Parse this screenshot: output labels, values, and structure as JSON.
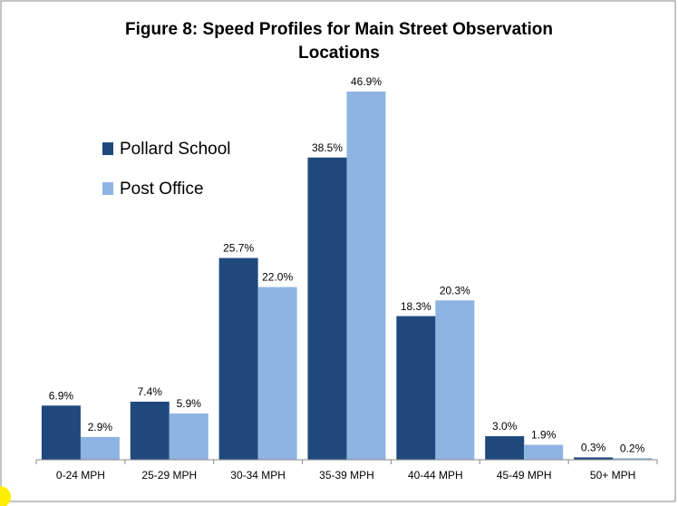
{
  "chart_data": {
    "type": "bar",
    "title": "Figure 8:  Speed Profiles for Main Street Observation Locations",
    "categories": [
      "0-24 MPH",
      "25-29 MPH",
      "30-34 MPH",
      "35-39 MPH",
      "40-44 MPH",
      "45-49 MPH",
      "50+ MPH"
    ],
    "series": [
      {
        "name": "Pollard School",
        "color": "#1f497d",
        "values": [
          6.9,
          7.4,
          25.7,
          38.5,
          18.3,
          3.0,
          0.3
        ],
        "value_labels": [
          "6.9%",
          "7.4%",
          "25.7%",
          "38.5%",
          "18.3%",
          "3.0%",
          "0.3%"
        ]
      },
      {
        "name": "Post Office",
        "color": "#8eb4e3",
        "values": [
          2.9,
          5.9,
          22.0,
          46.9,
          20.3,
          1.9,
          0.2
        ],
        "value_labels": [
          "2.9%",
          "5.9%",
          "22.0%",
          "46.9%",
          "20.3%",
          "1.9%",
          "0.2%"
        ]
      }
    ],
    "legend": "upper left"
  }
}
